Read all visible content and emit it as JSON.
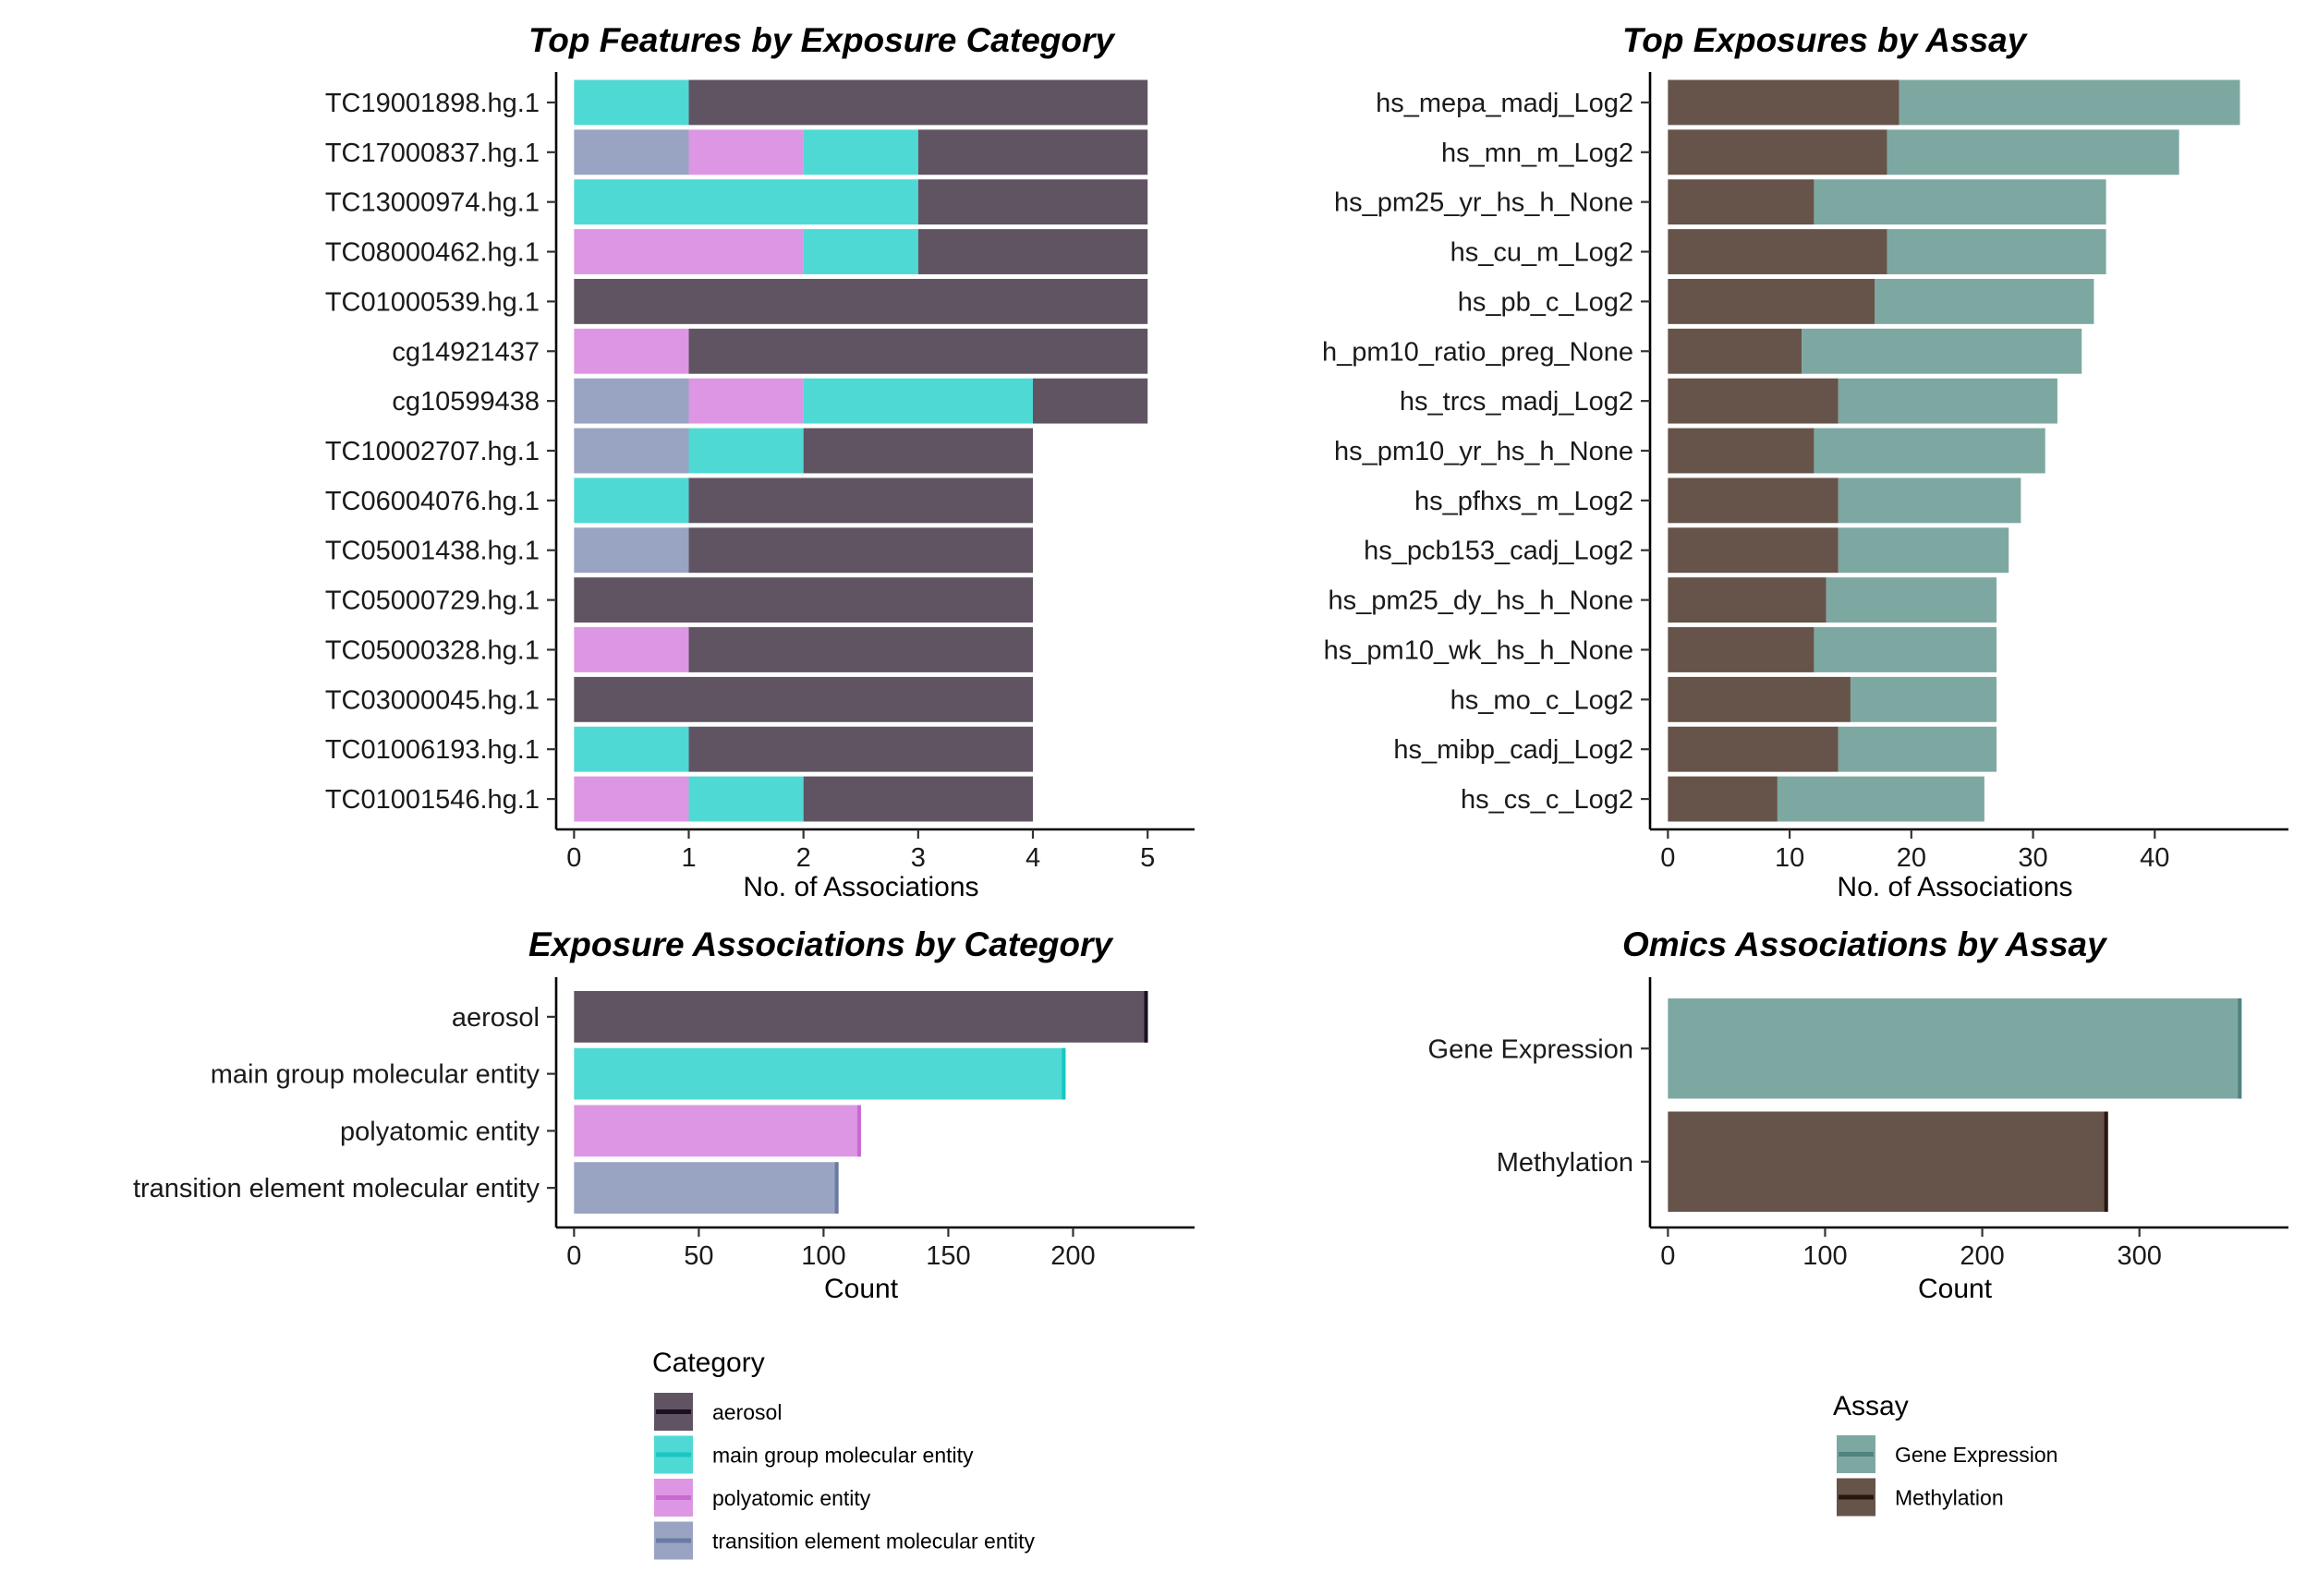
{
  "colors": {
    "aerosol": "#605463",
    "main group molecular entity": "#4fd9d4",
    "polyatomic entity": "#dd96e3",
    "transition element molecular entity": "#99a3c2",
    "Gene Expression": "#7da8a2",
    "Methylation": "#665349"
  },
  "edge_colors": {
    "aerosol": "#1b1020",
    "main group molecular entity": "#19c7c3",
    "polyatomic entity": "#c86ad2",
    "transition element molecular entity": "#6b7aa2",
    "Gene Expression": "#4f8380",
    "Methylation": "#2a1510"
  },
  "legends": {
    "category": {
      "title": "Category",
      "items": [
        "aerosol",
        "main group molecular entity",
        "polyatomic entity",
        "transition element molecular entity"
      ]
    },
    "assay": {
      "title": "Assay",
      "items": [
        "Gene Expression",
        "Methylation"
      ]
    }
  },
  "chart_data": [
    {
      "type": "bar",
      "orientation": "horizontal",
      "stacked": true,
      "title": "Top Features by Exposure Category",
      "xlabel": "No. of Associations",
      "ylabel": "",
      "xlim": [
        0,
        5.22
      ],
      "xticks": [
        0,
        1,
        2,
        3,
        4,
        5
      ],
      "stack_order": [
        "transition element molecular entity",
        "polyatomic entity",
        "main group molecular entity",
        "aerosol"
      ],
      "categories": [
        "TC19001898.hg.1",
        "TC17000837.hg.1",
        "TC13000974.hg.1",
        "TC08000462.hg.1",
        "TC01000539.hg.1",
        "cg14921437",
        "cg10599438",
        "TC10002707.hg.1",
        "TC06004076.hg.1",
        "TC05001438.hg.1",
        "TC05000729.hg.1",
        "TC05000328.hg.1",
        "TC03000045.hg.1",
        "TC01006193.hg.1",
        "TC01001546.hg.1"
      ],
      "series": [
        {
          "name": "aerosol",
          "values": [
            4,
            2,
            2,
            2,
            5,
            4,
            1,
            2,
            3,
            3,
            4,
            3,
            4,
            3,
            2
          ]
        },
        {
          "name": "main group molecular entity",
          "values": [
            1,
            1,
            3,
            1,
            0,
            0,
            2,
            1,
            1,
            0,
            0,
            0,
            0,
            1,
            1
          ]
        },
        {
          "name": "polyatomic entity",
          "values": [
            0,
            1,
            0,
            2,
            0,
            1,
            1,
            0,
            0,
            0,
            0,
            1,
            0,
            0,
            1
          ]
        },
        {
          "name": "transition element molecular entity",
          "values": [
            0,
            1,
            0,
            0,
            0,
            0,
            1,
            1,
            0,
            1,
            0,
            0,
            0,
            0,
            0
          ]
        }
      ]
    },
    {
      "type": "bar",
      "orientation": "horizontal",
      "stacked": true,
      "title": "Top Exposures by Assay",
      "xlabel": "No. of Associations",
      "ylabel": "",
      "xlim": [
        0,
        49.2
      ],
      "xticks": [
        0,
        10,
        20,
        30,
        40
      ],
      "stack_order": [
        "Methylation",
        "Gene Expression"
      ],
      "categories": [
        "hs_mepa_madj_Log2",
        "hs_mn_m_Log2",
        "hs_pm25_yr_hs_h_None",
        "hs_cu_m_Log2",
        "hs_pb_c_Log2",
        "h_pm10_ratio_preg_None",
        "hs_trcs_madj_Log2",
        "hs_pm10_yr_hs_h_None",
        "hs_pfhxs_m_Log2",
        "hs_pcb153_cadj_Log2",
        "hs_pm25_dy_hs_h_None",
        "hs_pm10_wk_hs_h_None",
        "hs_mo_c_Log2",
        "hs_mibp_cadj_Log2",
        "hs_cs_c_Log2"
      ],
      "series": [
        {
          "name": "Methylation",
          "values": [
            19,
            18,
            12,
            18,
            17,
            11,
            14,
            12,
            14,
            14,
            13,
            12,
            15,
            14,
            9
          ]
        },
        {
          "name": "Gene Expression",
          "values": [
            28,
            24,
            24,
            18,
            18,
            23,
            18,
            19,
            15,
            14,
            14,
            15,
            12,
            13,
            17
          ]
        }
      ]
    },
    {
      "type": "bar",
      "orientation": "horizontal",
      "title": "Exposure Associations by Category",
      "xlabel": "Count",
      "ylabel": "",
      "xlim": [
        0,
        240
      ],
      "xticks": [
        0,
        50,
        100,
        150,
        200
      ],
      "categories": [
        "aerosol",
        "main group molecular entity",
        "polyatomic entity",
        "transition element molecular entity"
      ],
      "values": [
        230,
        197,
        115,
        106
      ]
    },
    {
      "type": "bar",
      "orientation": "horizontal",
      "title": "Omics Associations by Assay",
      "xlabel": "Count",
      "ylabel": "",
      "xlim": [
        0,
        381
      ],
      "xticks": [
        0,
        100,
        200,
        300
      ],
      "categories": [
        "Gene Expression",
        "Methylation"
      ],
      "values": [
        365,
        280
      ]
    }
  ]
}
